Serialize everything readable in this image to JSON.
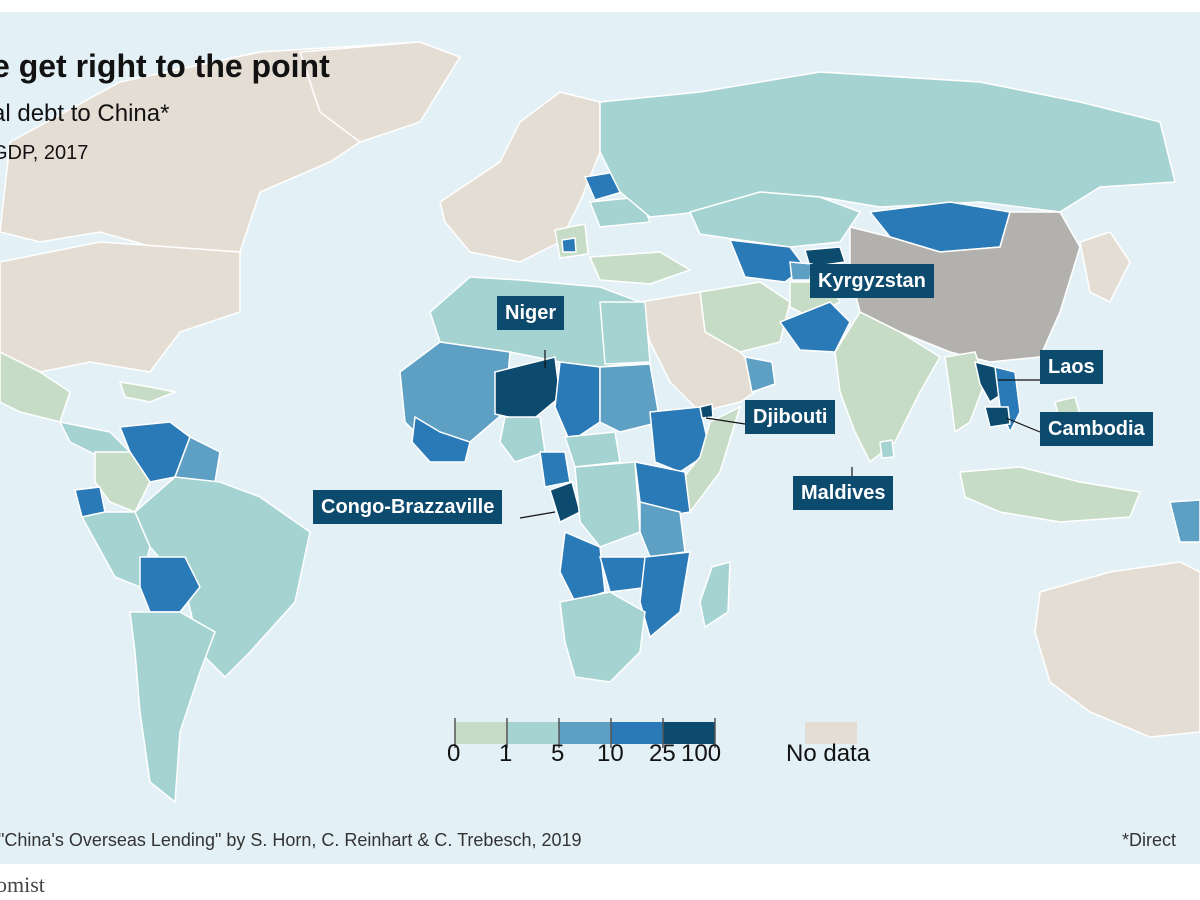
{
  "title": "e get right to the point",
  "subtitle": "al debt to China*",
  "subsubtitle": "GDP, 2017",
  "callouts": {
    "niger": "Niger",
    "kyrgyzstan": "Kyrgyzstan",
    "laos": "Laos",
    "djibouti": "Djibouti",
    "cambodia": "Cambodia",
    "maldives": "Maldives",
    "congo": "Congo-Brazzaville"
  },
  "legend": {
    "bins": [
      "0",
      "1",
      "5",
      "10",
      "25",
      "100"
    ],
    "no_data_label": "No data",
    "colors": [
      "#c7dcc6",
      "#a5d3d1",
      "#5e9fc4",
      "#2a7ab8",
      "#0c4a6e"
    ],
    "no_data_color": "#e4ddd3"
  },
  "colors": {
    "ocean": "#e3f1f7",
    "no_data": "#e4ddd3",
    "china": "#b3b1ad",
    "bin_0_1": "#c7dcc6",
    "bin_1_5": "#a5d3d1",
    "bin_5_10": "#5e9fc4",
    "bin_10_25": "#2a7ab8",
    "bin_25_100": "#0c4a6e"
  },
  "source": "\"China's Overseas Lending\" by S. Horn, C. Reinhart & C. Trebesch, 2019",
  "footnote": "*Direct",
  "brand": "omist"
}
